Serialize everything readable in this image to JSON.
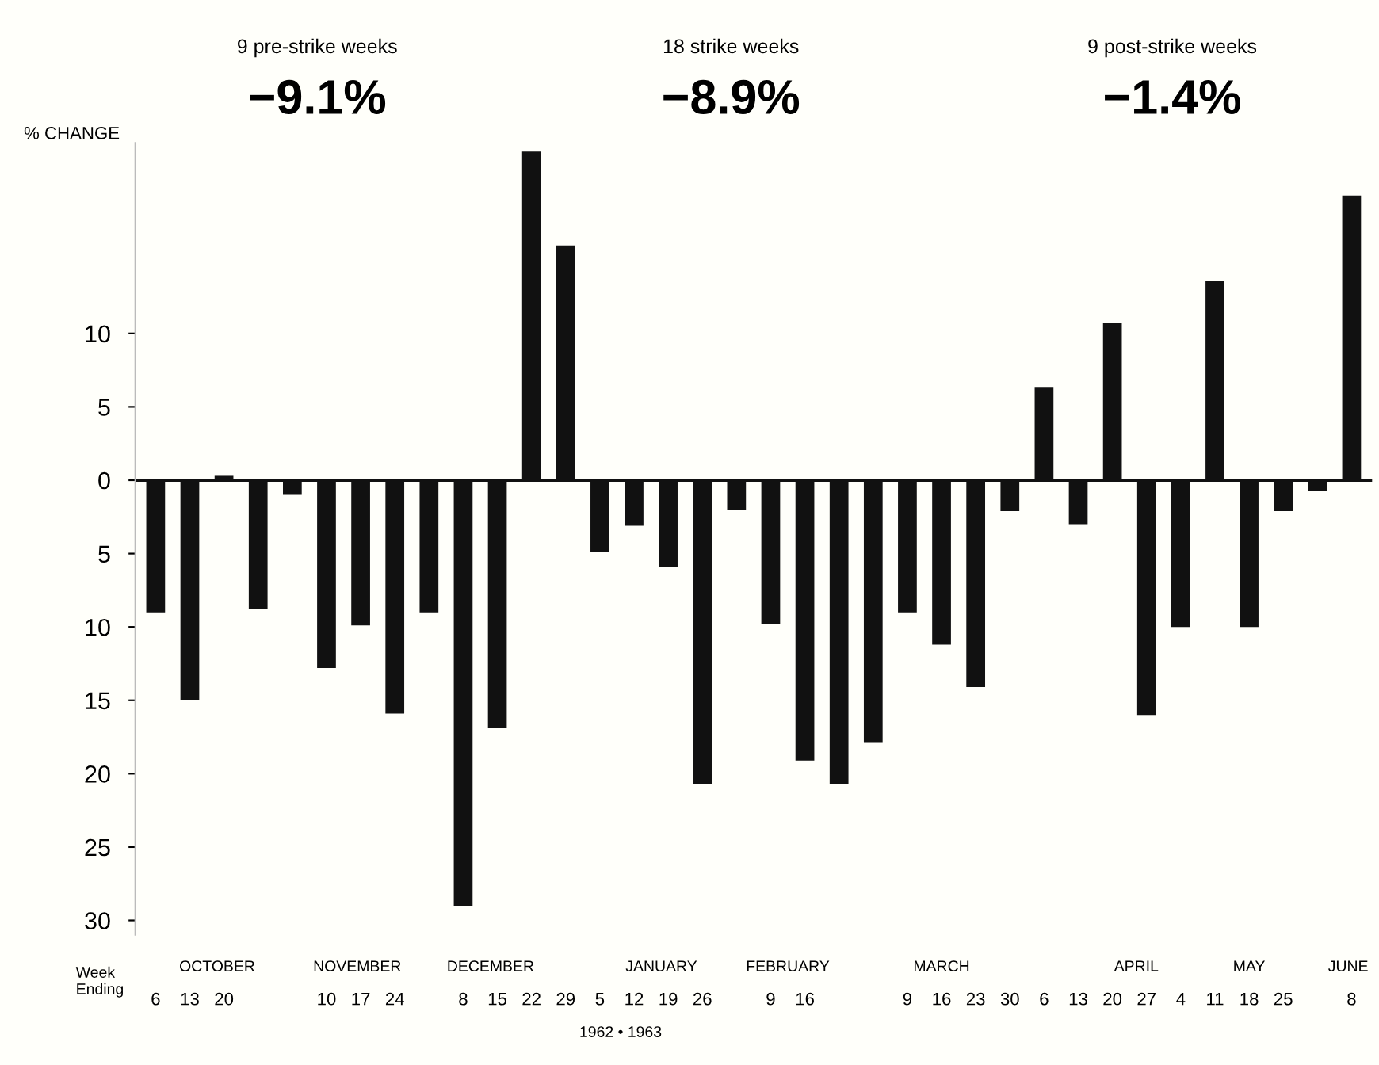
{
  "chart_data": {
    "type": "bar",
    "ylabel": "% CHANGE",
    "categories": [
      "6",
      "13",
      "20",
      null,
      null,
      "10",
      "17",
      "24",
      null,
      "8",
      "15",
      "22",
      "29",
      "5",
      "12",
      "19",
      "26",
      null,
      "9",
      "16",
      null,
      null,
      "9",
      "16",
      "23",
      "30",
      "6",
      "13",
      "20",
      "27",
      "4",
      "11",
      "18",
      "25",
      null,
      "8"
    ],
    "values": [
      -9.0,
      -15.0,
      0.3,
      -8.8,
      -1.0,
      -12.8,
      -9.9,
      -15.9,
      -9.0,
      -29.0,
      -16.9,
      22.4,
      16.0,
      -4.9,
      -3.1,
      -5.9,
      -20.7,
      -2.0,
      -9.8,
      -19.1,
      -20.7,
      -17.9,
      -9.0,
      -11.2,
      -14.1,
      -2.1,
      6.3,
      -3.0,
      10.7,
      -16.0,
      -10.0,
      13.6,
      -10.0,
      -2.1,
      -0.7,
      19.4
    ],
    "color": "#111111",
    "ylim": [
      -31,
      23
    ],
    "yticks": [
      {
        "value": 10,
        "label": "10"
      },
      {
        "value": 5,
        "label": "5"
      },
      0,
      {
        "value": -5,
        "label": "5"
      },
      {
        "value": -10,
        "label": "10"
      },
      {
        "value": -15,
        "label": "15"
      },
      {
        "value": -20,
        "label": "20"
      },
      {
        "value": -25,
        "label": "25"
      },
      {
        "value": -30,
        "label": "30"
      }
    ],
    "ref_lines": [
      {
        "axis": "y",
        "value": 0,
        "color": "#111111"
      }
    ],
    "annotations": [
      "9 pre-strike weeks",
      "−9.1%",
      "18 strike weeks",
      "−8.9%",
      "9 post-strike weeks",
      "−1.4%",
      "Week\nEnding",
      "OCTOBER",
      "NOVEMBER",
      "DECEMBER",
      "JANUARY",
      "FEBRUARY",
      "MARCH",
      "APRIL",
      "MAY",
      "JUNE",
      "1962 • 1963"
    ],
    "grid": false,
    "legend": false
  }
}
